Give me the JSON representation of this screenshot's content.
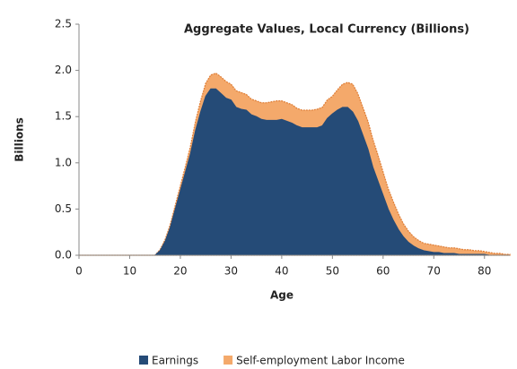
{
  "chart_data": {
    "type": "stacked-area",
    "title": "Aggregate Values, Local Currency (Billions)",
    "x_label": "Age",
    "y_label": "Billions",
    "x": [
      0,
      5,
      10,
      14,
      15,
      16,
      17,
      18,
      19,
      20,
      21,
      22,
      23,
      24,
      25,
      26,
      27,
      28,
      29,
      30,
      31,
      32,
      33,
      34,
      35,
      36,
      37,
      38,
      39,
      40,
      41,
      42,
      43,
      44,
      45,
      46,
      47,
      48,
      49,
      50,
      51,
      52,
      53,
      54,
      55,
      56,
      57,
      58,
      59,
      60,
      61,
      62,
      63,
      64,
      65,
      66,
      67,
      68,
      69,
      70,
      71,
      72,
      73,
      74,
      75,
      76,
      77,
      78,
      79,
      80,
      81,
      82,
      83,
      84,
      85
    ],
    "series": [
      {
        "name": "Earnings",
        "color": "#254b77",
        "values": [
          0,
          0,
          0,
          0,
          0,
          0.05,
          0.15,
          0.3,
          0.5,
          0.7,
          0.9,
          1.1,
          1.35,
          1.55,
          1.72,
          1.8,
          1.8,
          1.75,
          1.7,
          1.68,
          1.6,
          1.58,
          1.57,
          1.52,
          1.5,
          1.47,
          1.46,
          1.46,
          1.46,
          1.47,
          1.45,
          1.43,
          1.4,
          1.38,
          1.38,
          1.38,
          1.38,
          1.4,
          1.48,
          1.53,
          1.57,
          1.6,
          1.6,
          1.55,
          1.45,
          1.3,
          1.15,
          0.95,
          0.8,
          0.65,
          0.5,
          0.38,
          0.28,
          0.2,
          0.14,
          0.1,
          0.07,
          0.05,
          0.04,
          0.03,
          0.03,
          0.02,
          0.02,
          0.02,
          0.01,
          0.01,
          0.01,
          0.01,
          0.01,
          0.01,
          0,
          0,
          0,
          0,
          0
        ]
      },
      {
        "name": "Self-employment Labor Income",
        "color": "#f4a96b",
        "values": [
          0,
          0,
          0,
          0,
          0,
          0.01,
          0.02,
          0.03,
          0.04,
          0.05,
          0.06,
          0.08,
          0.1,
          0.12,
          0.14,
          0.15,
          0.17,
          0.18,
          0.18,
          0.17,
          0.18,
          0.18,
          0.17,
          0.17,
          0.17,
          0.18,
          0.19,
          0.2,
          0.21,
          0.2,
          0.2,
          0.2,
          0.19,
          0.19,
          0.19,
          0.19,
          0.2,
          0.2,
          0.2,
          0.19,
          0.22,
          0.25,
          0.27,
          0.3,
          0.3,
          0.3,
          0.3,
          0.3,
          0.28,
          0.25,
          0.22,
          0.2,
          0.17,
          0.14,
          0.12,
          0.1,
          0.09,
          0.08,
          0.08,
          0.08,
          0.07,
          0.07,
          0.06,
          0.06,
          0.06,
          0.05,
          0.05,
          0.04,
          0.04,
          0.03,
          0.03,
          0.02,
          0.02,
          0.01,
          0.01
        ]
      }
    ],
    "xlim": [
      0,
      85
    ],
    "ylim": [
      0,
      2.5
    ],
    "xticks": [
      0,
      10,
      20,
      30,
      40,
      50,
      60,
      70,
      80
    ],
    "yticks": [
      {
        "value": 0,
        "label": "0.0"
      },
      0.5,
      {
        "value": 1,
        "label": "1.0"
      },
      1.5,
      {
        "value": 2,
        "label": "2.0"
      },
      2.5
    ],
    "grid": false,
    "legend": "bottom"
  }
}
